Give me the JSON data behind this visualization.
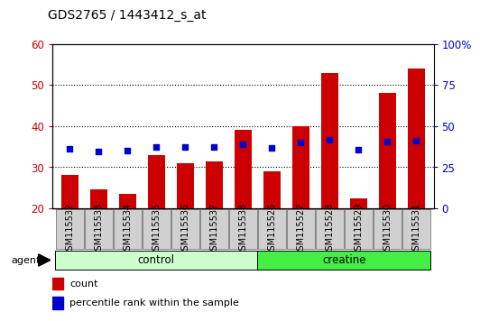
{
  "title": "GDS2765 / 1443412_s_at",
  "categories": [
    "GSM115532",
    "GSM115533",
    "GSM115534",
    "GSM115535",
    "GSM115536",
    "GSM115537",
    "GSM115538",
    "GSM115526",
    "GSM115527",
    "GSM115528",
    "GSM115529",
    "GSM115530",
    "GSM115531"
  ],
  "counts": [
    28,
    24.5,
    23.5,
    33,
    31,
    31.5,
    39,
    29,
    40,
    53,
    22.5,
    48,
    54
  ],
  "percentile_ranks": [
    36,
    34.5,
    35,
    37.5,
    37.5,
    37.5,
    39,
    36.5,
    40,
    41.5,
    35.5,
    40.5,
    41
  ],
  "groups": [
    {
      "label": "control",
      "start": 0,
      "end": 6,
      "color": "#ccffcc"
    },
    {
      "label": "creatine",
      "start": 7,
      "end": 12,
      "color": "#44ee44"
    }
  ],
  "bar_color": "#cc0000",
  "dot_color": "#0000cc",
  "left_ylim": [
    20,
    60
  ],
  "right_ylim": [
    0,
    100
  ],
  "left_yticks": [
    20,
    30,
    40,
    50,
    60
  ],
  "right_yticks": [
    0,
    25,
    50,
    75,
    100
  ],
  "right_yticklabels": [
    "0",
    "25",
    "50",
    "75",
    "100%"
  ],
  "title_fontsize": 10,
  "axis_label_color_left": "#cc0000",
  "axis_label_color_right": "#0000cc",
  "agent_label": "agent",
  "legend_count_label": "count",
  "legend_percentile_label": "percentile rank within the sample",
  "tick_bg_color": "#d0d0d0",
  "tick_edge_color": "#888888"
}
